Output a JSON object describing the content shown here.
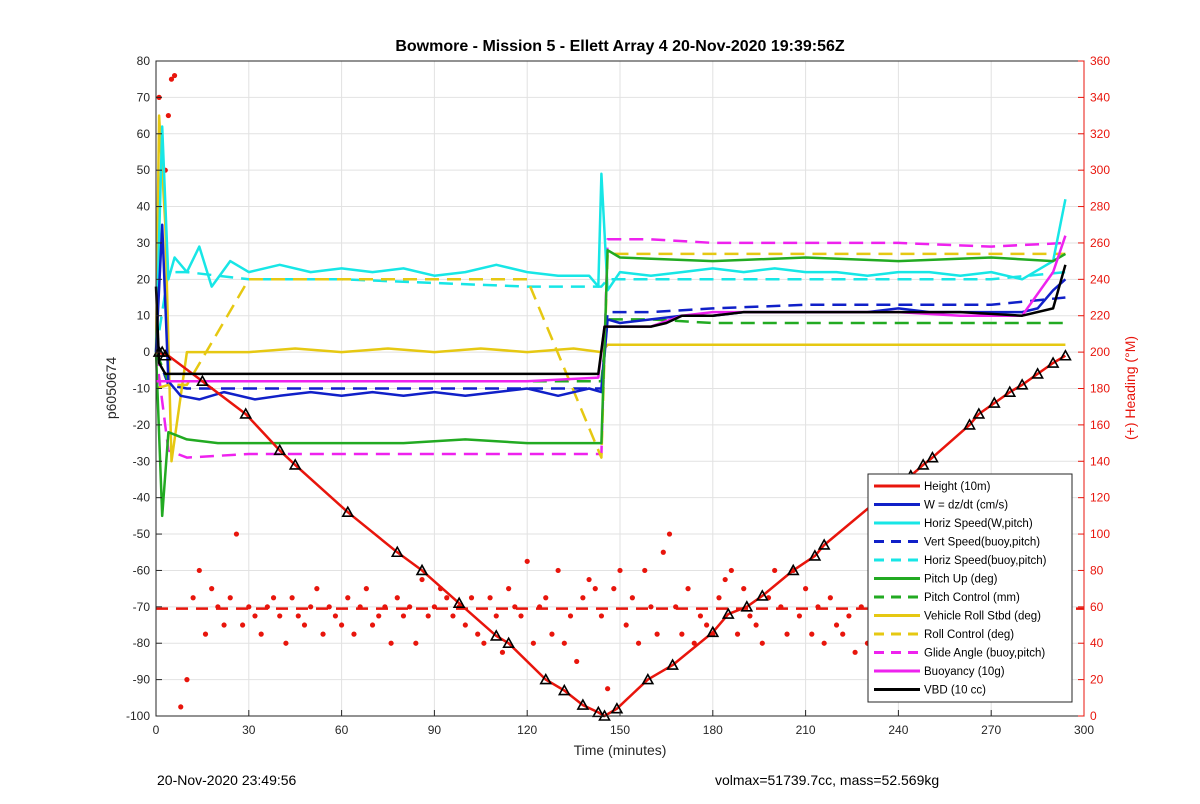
{
  "footer": {
    "timestamp": "20-Nov-2020 23:49:56",
    "summary": "volmax=51739.7cc, mass=52.569kg"
  },
  "chart_data": {
    "type": "line",
    "title": "Bowmore - Mission 5 - Ellett Array 4 20-Nov-2020 19:39:56Z",
    "xlabel": "Time (minutes)",
    "ylabel": "p6050674",
    "y2label": "(+) Heading (°M)",
    "xlim": [
      0,
      300
    ],
    "ylim": [
      -100,
      80
    ],
    "y2lim": [
      0,
      360
    ],
    "xticks": [
      0,
      30,
      60,
      90,
      120,
      150,
      180,
      210,
      240,
      270,
      300
    ],
    "yticks": [
      -100,
      -90,
      -80,
      -70,
      -60,
      -50,
      -40,
      -30,
      -20,
      -10,
      0,
      10,
      20,
      30,
      40,
      50,
      60,
      70,
      80
    ],
    "y2ticks": [
      0,
      20,
      40,
      60,
      80,
      100,
      120,
      140,
      160,
      180,
      200,
      220,
      240,
      260,
      280,
      300,
      320,
      340,
      360
    ],
    "grid": true,
    "legend_position": "bottom-right",
    "colors": {
      "red": "#e8150c",
      "blue": "#1020c8",
      "cyan": "#17e6e6",
      "green": "#22aa22",
      "yellow": "#e6c812",
      "magenta": "#ee22ee",
      "black": "#000000"
    },
    "series": [
      {
        "name": "Height (10m)",
        "color": "#e8150c",
        "style": "solid",
        "x": [
          0,
          4,
          15,
          29,
          40,
          45,
          62,
          78,
          86,
          98,
          110,
          114,
          126,
          132,
          138,
          143,
          145,
          149,
          159,
          167,
          180,
          185,
          191,
          196,
          206,
          213,
          216,
          240,
          244,
          248,
          251,
          263,
          266,
          271,
          276,
          280,
          285,
          290,
          294
        ],
        "values": [
          0,
          -1,
          -8,
          -17,
          -27,
          -31,
          -44,
          -55,
          -60,
          -69,
          -78,
          -80,
          -90,
          -93,
          -97,
          -99,
          -100,
          -98,
          -90,
          -86,
          -77,
          -72,
          -70,
          -67,
          -60,
          -56,
          -53,
          -36,
          -34,
          -31,
          -29,
          -20,
          -17,
          -14,
          -11,
          -9,
          -6,
          -3,
          -1
        ]
      },
      {
        "name": "W = dz/dt (cm/s)",
        "color": "#1020c8",
        "style": "solid",
        "x": [
          0,
          2,
          4,
          8,
          14,
          22,
          32,
          40,
          50,
          60,
          70,
          80,
          90,
          100,
          110,
          120,
          130,
          140,
          144,
          146,
          150,
          160,
          170,
          180,
          190,
          200,
          210,
          220,
          230,
          240,
          250,
          260,
          270,
          280,
          285,
          290,
          294
        ],
        "values": [
          0,
          35,
          -8,
          -12,
          -13,
          -11,
          -13,
          -12,
          -11,
          -12,
          -11,
          -12,
          -11,
          -12,
          -11,
          -10,
          -12,
          -10,
          -11,
          9,
          8,
          9,
          10,
          10,
          11,
          11,
          11,
          11,
          11,
          12,
          11,
          11,
          11,
          11,
          12,
          17,
          20
        ]
      },
      {
        "name": "Horiz Speed(W,pitch)",
        "color": "#17e6e6",
        "style": "solid",
        "x": [
          0,
          2,
          4,
          6,
          10,
          14,
          18,
          24,
          30,
          40,
          50,
          60,
          70,
          80,
          90,
          100,
          110,
          120,
          130,
          140,
          143,
          144,
          146,
          150,
          160,
          170,
          180,
          190,
          200,
          210,
          220,
          230,
          240,
          250,
          260,
          270,
          280,
          290,
          294
        ],
        "values": [
          0,
          62,
          20,
          26,
          22,
          29,
          18,
          25,
          22,
          24,
          22,
          23,
          22,
          23,
          21,
          22,
          24,
          22,
          21,
          21,
          18,
          49,
          17,
          22,
          21,
          22,
          23,
          22,
          23,
          22,
          22,
          21,
          22,
          22,
          21,
          22,
          20,
          25,
          42
        ]
      },
      {
        "name": "Vert Speed(buoy,pitch)",
        "color": "#1020c8",
        "style": "dashed",
        "x": [
          0,
          4,
          10,
          30,
          60,
          90,
          120,
          144,
          146,
          160,
          180,
          210,
          240,
          270,
          294
        ],
        "values": [
          0,
          -9,
          -10,
          -10,
          -10,
          -10,
          -10,
          -10,
          11,
          11,
          12,
          13,
          13,
          13,
          15
        ]
      },
      {
        "name": "Horiz Speed(buoy,pitch)",
        "color": "#17e6e6",
        "style": "dashed",
        "x": [
          0,
          4,
          10,
          30,
          60,
          90,
          120,
          144,
          146,
          160,
          180,
          210,
          240,
          270,
          294
        ],
        "values": [
          0,
          22,
          22,
          20,
          20,
          19,
          18,
          18,
          20,
          20,
          20,
          20,
          20,
          20,
          22
        ]
      },
      {
        "name": "Pitch Up (deg)",
        "color": "#22aa22",
        "style": "solid",
        "x": [
          0,
          2,
          4,
          10,
          20,
          40,
          60,
          80,
          100,
          120,
          140,
          144,
          146,
          150,
          180,
          210,
          240,
          270,
          290,
          294
        ],
        "values": [
          0,
          -45,
          -22,
          -24,
          -25,
          -25,
          -25,
          -25,
          -24,
          -25,
          -25,
          -25,
          28,
          26,
          25,
          26,
          25,
          26,
          25,
          27
        ]
      },
      {
        "name": "Pitch Control (mm)",
        "color": "#22aa22",
        "style": "dashed",
        "x": [
          0,
          4,
          10,
          30,
          60,
          90,
          120,
          144,
          146,
          160,
          180,
          210,
          240,
          270,
          294
        ],
        "values": [
          0,
          -8,
          -8,
          -8,
          -8,
          -8,
          -8,
          -8,
          9,
          9,
          8,
          8,
          8,
          8,
          8
        ]
      },
      {
        "name": "Vehicle Roll Stbd (deg)",
        "color": "#e6c812",
        "style": "solid",
        "x": [
          0,
          1,
          3,
          5,
          10,
          20,
          30,
          45,
          60,
          75,
          90,
          105,
          120,
          135,
          144,
          146,
          160,
          180,
          200,
          220,
          240,
          260,
          280,
          294
        ],
        "values": [
          0,
          65,
          35,
          -30,
          0,
          0,
          0,
          1,
          0,
          1,
          0,
          1,
          0,
          1,
          0,
          2,
          2,
          2,
          2,
          2,
          2,
          2,
          2,
          2
        ]
      },
      {
        "name": "Roll Control (deg)",
        "color": "#e6c812",
        "style": "dashed",
        "x": [
          0,
          4,
          10,
          30,
          60,
          90,
          120,
          144,
          146,
          160,
          180,
          210,
          240,
          270,
          294
        ],
        "values": [
          -10,
          -9,
          -9,
          20,
          20,
          20,
          20,
          -29,
          27,
          27,
          27,
          27,
          27,
          27,
          27
        ]
      },
      {
        "name": "Glide Angle (buoy,pitch)",
        "color": "#ee22ee",
        "style": "dashed",
        "x": [
          0,
          4,
          10,
          30,
          60,
          90,
          120,
          144,
          146,
          160,
          180,
          210,
          240,
          270,
          294
        ],
        "values": [
          0,
          -27,
          -29,
          -28,
          -28,
          -28,
          -28,
          -28,
          31,
          31,
          30,
          30,
          30,
          29,
          30
        ]
      },
      {
        "name": "Buoyancy (10g)",
        "color": "#ee22ee",
        "style": "solid",
        "x": [
          0,
          4,
          10,
          30,
          60,
          90,
          120,
          143,
          145,
          150,
          160,
          170,
          180,
          200,
          220,
          240,
          260,
          280,
          290,
          294
        ],
        "values": [
          -8,
          -8,
          -8,
          -8,
          -8,
          -8,
          -8,
          -7,
          7,
          7,
          7,
          10,
          11,
          11,
          11,
          11,
          10,
          10,
          22,
          32
        ]
      },
      {
        "name": "VBD (10 cc)",
        "color": "#000000",
        "style": "solid",
        "x": [
          0,
          1,
          3,
          10,
          30,
          60,
          90,
          120,
          143,
          145,
          150,
          160,
          165,
          170,
          180,
          190,
          200,
          220,
          240,
          260,
          280,
          290,
          294
        ],
        "values": [
          18,
          -3,
          -6,
          -6,
          -6,
          -6,
          -6,
          -6,
          -6,
          7,
          7,
          7,
          8,
          10,
          10,
          11,
          11,
          11,
          11,
          11,
          10,
          12,
          24
        ]
      }
    ],
    "heading_scatter": {
      "axis": "right",
      "color": "#e8150c",
      "x": [
        1,
        3,
        4,
        5,
        6,
        8,
        10,
        12,
        14,
        16,
        18,
        20,
        22,
        24,
        26,
        28,
        30,
        32,
        34,
        36,
        38,
        40,
        42,
        44,
        46,
        48,
        50,
        52,
        54,
        56,
        58,
        60,
        62,
        64,
        66,
        68,
        70,
        72,
        74,
        76,
        78,
        80,
        82,
        84,
        86,
        88,
        90,
        92,
        94,
        96,
        98,
        100,
        102,
        104,
        106,
        108,
        110,
        112,
        114,
        116,
        118,
        120,
        122,
        124,
        126,
        128,
        130,
        132,
        134,
        136,
        138,
        140,
        142,
        144,
        146,
        148,
        150,
        152,
        154,
        156,
        158,
        160,
        162,
        164,
        166,
        168,
        170,
        172,
        174,
        176,
        178,
        180,
        182,
        184,
        186,
        188,
        190,
        192,
        194,
        196,
        198,
        200,
        202,
        204,
        206,
        208,
        210,
        212,
        214,
        216,
        218,
        220,
        222,
        224,
        226,
        228,
        230,
        232,
        234,
        236,
        238,
        240,
        242,
        244,
        246,
        248,
        250,
        252,
        254,
        256,
        258,
        260,
        262,
        264,
        266,
        268,
        270,
        272,
        274,
        276,
        278,
        280,
        282,
        284,
        286,
        288,
        290,
        292,
        294
      ],
      "values": [
        340,
        300,
        330,
        350,
        352,
        5,
        20,
        65,
        80,
        45,
        70,
        60,
        50,
        65,
        100,
        50,
        60,
        55,
        45,
        60,
        65,
        55,
        40,
        65,
        55,
        50,
        60,
        70,
        45,
        60,
        55,
        50,
        65,
        45,
        60,
        70,
        50,
        55,
        60,
        40,
        65,
        55,
        60,
        40,
        75,
        55,
        60,
        70,
        65,
        55,
        60,
        50,
        65,
        45,
        40,
        65,
        55,
        35,
        70,
        60,
        55,
        85,
        40,
        60,
        65,
        45,
        80,
        40,
        55,
        30,
        65,
        75,
        70,
        55,
        15,
        70,
        80,
        50,
        65,
        40,
        80,
        60,
        45,
        90,
        100,
        60,
        45,
        70,
        40,
        55,
        50,
        45,
        65,
        75,
        80,
        45,
        70,
        55,
        50,
        40,
        65,
        80,
        60,
        45,
        80,
        55,
        70,
        45,
        60,
        40,
        65,
        50,
        45,
        55,
        35,
        60,
        40,
        50,
        60,
        40,
        55,
        60,
        45,
        65,
        55,
        40,
        50,
        70,
        60,
        45,
        55,
        65,
        80,
        50,
        45,
        70,
        55,
        60,
        45,
        65,
        50,
        70,
        60,
        40,
        70,
        75,
        55,
        90,
        70
      ]
    },
    "heading_mean": {
      "value": 59,
      "color": "#e8150c",
      "style": "dashed"
    },
    "height_markers": {
      "x": [
        1,
        2,
        3,
        15,
        29,
        40,
        45,
        62,
        78,
        86,
        98,
        110,
        114,
        126,
        132,
        138,
        143,
        145,
        149,
        159,
        167,
        180,
        185,
        191,
        196,
        206,
        213,
        216,
        240,
        244,
        248,
        251,
        263,
        266,
        271,
        276,
        280,
        285,
        290,
        294
      ],
      "values": [
        0,
        0,
        -1,
        -8,
        -17,
        -27,
        -31,
        -44,
        -55,
        -60,
        -69,
        -78,
        -80,
        -90,
        -93,
        -97,
        -99,
        -100,
        -98,
        -90,
        -86,
        -77,
        -72,
        -70,
        -67,
        -60,
        -56,
        -53,
        -36,
        -34,
        -31,
        -29,
        -20,
        -17,
        -14,
        -11,
        -9,
        -6,
        -3,
        -1
      ]
    }
  }
}
